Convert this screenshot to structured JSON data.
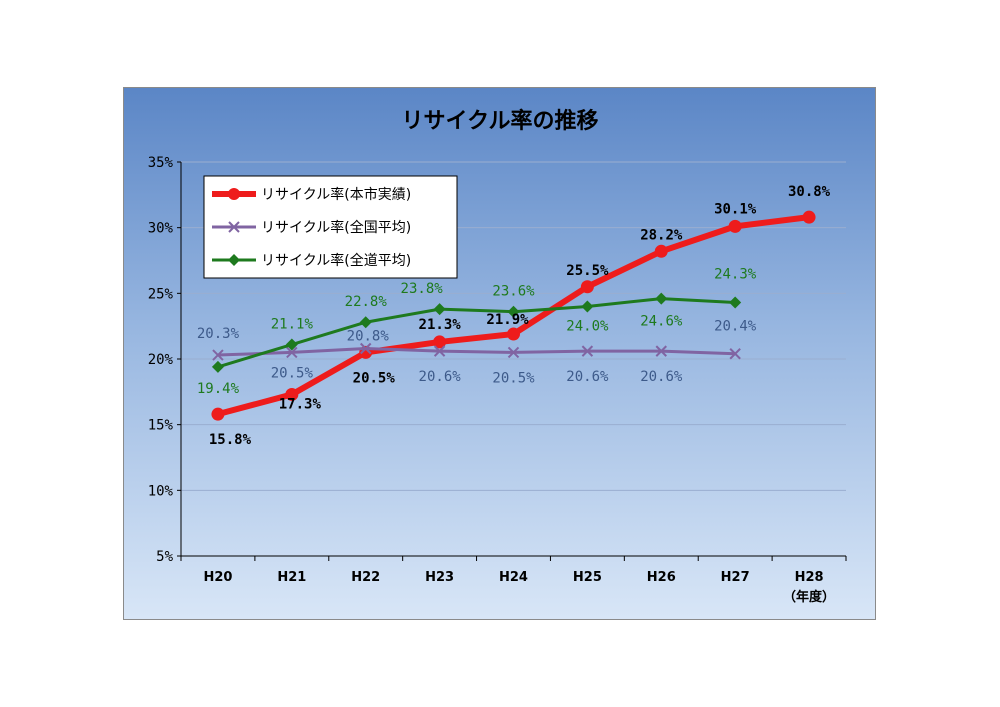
{
  "chart_data": {
    "type": "line",
    "title": "リサイクル率の推移",
    "categories": [
      "H20",
      "H21",
      "H22",
      "H23",
      "H24",
      "H25",
      "H26",
      "H27",
      "H28"
    ],
    "x_unit_label": "（年度）",
    "y_ticks": [
      "35%",
      "30%",
      "25%",
      "20%",
      "15%",
      "10%",
      "5%"
    ],
    "ylim": [
      5,
      35
    ],
    "grid": "horizontal",
    "legend_position": "top-left",
    "series": [
      {
        "name": "リサイクル率(本市実績)",
        "color": "#ee1c1c",
        "marker": "circle",
        "values": [
          15.8,
          17.3,
          20.5,
          21.3,
          21.9,
          25.5,
          28.2,
          30.1,
          30.8
        ],
        "labels": [
          "15.8%",
          "17.3%",
          "20.5%",
          "21.3%",
          "21.9%",
          "25.5%",
          "28.2%",
          "30.1%",
          "30.8%"
        ]
      },
      {
        "name": "リサイクル率(全国平均)",
        "color": "#8064a2",
        "marker": "x",
        "values": [
          20.3,
          20.5,
          20.8,
          20.6,
          20.5,
          20.6,
          20.6,
          20.4,
          null
        ],
        "labels": [
          "20.3%",
          "20.5%",
          "20.8%",
          "20.6%",
          "20.5%",
          "20.6%",
          "20.6%",
          "20.4%",
          null
        ]
      },
      {
        "name": "リサイクル率(全道平均)",
        "color": "#1e7a1e",
        "marker": "diamond",
        "values": [
          19.4,
          21.1,
          22.8,
          23.8,
          23.6,
          24.0,
          24.6,
          24.3,
          null
        ],
        "labels": [
          "19.4%",
          "21.1%",
          "22.8%",
          "23.8%",
          "23.6%",
          "24.0%",
          "24.6%",
          "24.3%",
          null
        ]
      }
    ]
  }
}
